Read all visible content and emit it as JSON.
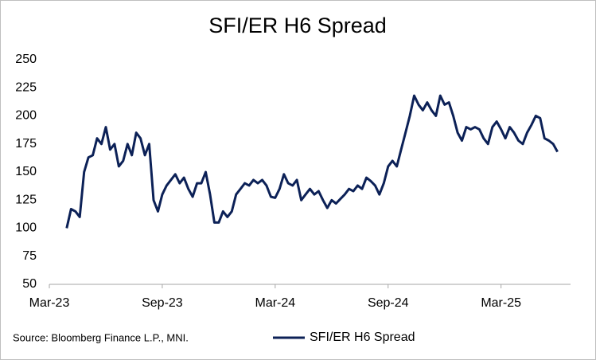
{
  "chart_data": {
    "type": "line",
    "title": "SFI/ER H6 Spread",
    "source": "Source: Bloomberg Finance L.P., MNI.",
    "categories": [
      "Mar-23",
      null,
      null,
      null,
      null,
      null,
      null,
      null,
      null,
      null,
      null,
      null,
      null,
      null,
      null,
      null,
      null,
      null,
      null,
      null,
      null,
      null,
      null,
      null,
      null,
      null,
      "Sep-23",
      null,
      null,
      null,
      null,
      null,
      null,
      null,
      null,
      null,
      null,
      null,
      null,
      null,
      null,
      null,
      null,
      null,
      null,
      null,
      null,
      null,
      null,
      null,
      null,
      null,
      "Mar-24",
      null,
      null,
      null,
      null,
      null,
      null,
      null,
      null,
      null,
      null,
      null,
      null,
      null,
      null,
      null,
      null,
      null,
      null,
      null,
      null,
      null,
      null,
      null,
      null,
      null,
      "Sep-24",
      null,
      null,
      null,
      null,
      null,
      null,
      null,
      null,
      null,
      null,
      null,
      null,
      null,
      null,
      null,
      null,
      null,
      null,
      null,
      null,
      null,
      null,
      null,
      null,
      null,
      "Mar-25",
      null,
      null,
      null,
      null,
      null,
      null,
      null,
      null,
      null,
      null,
      null,
      null,
      null,
      null,
      null,
      null
    ],
    "series": [
      {
        "name": "SFI/ER H6 Spread",
        "color": "#0c2157",
        "values": [
          null,
          null,
          null,
          null,
          100,
          117,
          115,
          110,
          150,
          163,
          165,
          180,
          175,
          190,
          170,
          175,
          155,
          160,
          175,
          165,
          185,
          180,
          165,
          175,
          125,
          115,
          130,
          138,
          143,
          148,
          140,
          145,
          135,
          128,
          140,
          140,
          150,
          130,
          105,
          105,
          115,
          110,
          115,
          130,
          135,
          140,
          138,
          143,
          140,
          143,
          138,
          128,
          127,
          135,
          148,
          140,
          138,
          143,
          125,
          130,
          135,
          130,
          133,
          125,
          118,
          125,
          122,
          126,
          130,
          135,
          133,
          138,
          135,
          145,
          142,
          138,
          130,
          140,
          155,
          160,
          155,
          170,
          185,
          200,
          218,
          210,
          205,
          212,
          205,
          200,
          218,
          210,
          212,
          200,
          185,
          178,
          190,
          188,
          190,
          188,
          180,
          175,
          190,
          195,
          188,
          180,
          190,
          185,
          178,
          175,
          185,
          192,
          200,
          198,
          180,
          178,
          175,
          168,
          null,
          null,
          null
        ]
      }
    ],
    "ylim": [
      50,
      250
    ],
    "yticks": [
      50,
      75,
      100,
      125,
      150,
      175,
      200,
      225,
      250
    ],
    "grid": false,
    "legend": "bottom"
  }
}
